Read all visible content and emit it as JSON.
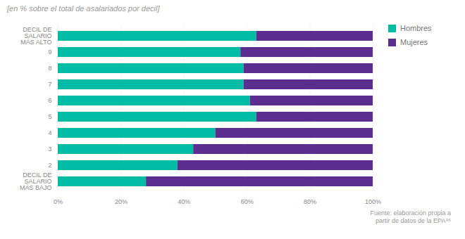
{
  "chart_data": {
    "type": "bar",
    "orientation": "horizontal",
    "stacked": true,
    "title": "[en % sobre el total de asalariados por decil]",
    "categories": [
      "DECIL DE\nSALARIO\nMÁS ALTO",
      "9",
      "8",
      "7",
      "6",
      "5",
      "4",
      "3",
      "2",
      "DECIL DE\nSALARIO\nMÁS BAJO"
    ],
    "series": [
      {
        "name": "Hombres",
        "color": "#00BCA4",
        "values": [
          63,
          58,
          59,
          59,
          61,
          63,
          50,
          43,
          38,
          28
        ]
      },
      {
        "name": "Mujeres",
        "color": "#5B2D8E",
        "values": [
          37,
          42,
          41,
          41,
          39,
          37,
          50,
          57,
          62,
          72
        ]
      }
    ],
    "xlim": [
      0,
      100
    ],
    "xticks": [
      {
        "value": 0,
        "label": "0%"
      },
      {
        "value": 20,
        "label": "20%"
      },
      {
        "value": 40,
        "label": "40%"
      },
      {
        "value": 60,
        "label": "60%"
      },
      {
        "value": 80,
        "label": "80%"
      },
      {
        "value": 100,
        "label": "100%"
      }
    ],
    "grid": true,
    "legend": "right",
    "annotations": [
      "Fuente: elaboración propia a\npartir de datos de la EPA⁴⁶"
    ]
  }
}
